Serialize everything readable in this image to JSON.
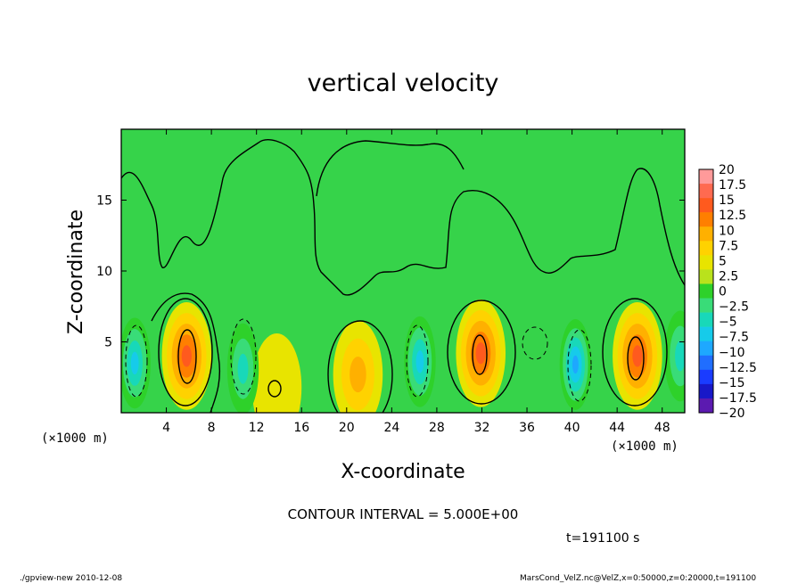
{
  "chart_data": {
    "type": "heatmap",
    "title": "vertical velocity",
    "xlabel": "X-coordinate",
    "ylabel": "Z-coordinate",
    "x_unit": "(×1000 m)",
    "y_unit": "(×1000 m)",
    "xlim": [
      0,
      50
    ],
    "ylim": [
      0,
      20
    ],
    "x_ticks": [
      4,
      8,
      12,
      16,
      20,
      24,
      28,
      32,
      36,
      40,
      44,
      48
    ],
    "y_ticks": [
      5,
      10,
      15
    ],
    "contour_interval_text": "CONTOUR INTERVAL = 5.000E+00",
    "time_text": "t=191100 s",
    "colorbar_levels": [
      "20",
      "17.5",
      "15",
      "12.5",
      "10",
      "7.5",
      "5",
      "2.5",
      "0",
      "-2.5",
      "-5",
      "-7.5",
      "-10",
      "-12.5",
      "-15",
      "-17.5",
      "-20"
    ],
    "colorbar_colors": [
      "#ff9a9a",
      "#ff6a50",
      "#ff5a1e",
      "#ff7f00",
      "#ffb000",
      "#ffd200",
      "#e8e400",
      "#b9e21c",
      "#2ed12a",
      "#39dc78",
      "#18d8b9",
      "#16cbea",
      "#1ea8ff",
      "#206eff",
      "#1a3cff",
      "#1818c8",
      "#5b1ab0"
    ],
    "features": [
      {
        "kind": "updraft",
        "x": 5.8,
        "z": 4.0,
        "max": 12.5
      },
      {
        "kind": "updraft",
        "x": 13.8,
        "z": 1.8,
        "max": 2.5
      },
      {
        "kind": "updraft",
        "x": 21.0,
        "z": 2.7,
        "max": 7.5
      },
      {
        "kind": "updraft",
        "x": 31.9,
        "z": 4.2,
        "max": 12.5
      },
      {
        "kind": "updraft",
        "x": 45.8,
        "z": 4.0,
        "max": 12.5
      },
      {
        "kind": "downdraft",
        "x": 1.2,
        "z": 3.5,
        "min": -10
      },
      {
        "kind": "downdraft",
        "x": 10.8,
        "z": 3.1,
        "min": -7.5
      },
      {
        "kind": "downdraft",
        "x": 26.5,
        "z": 3.6,
        "min": -10
      },
      {
        "kind": "downdraft",
        "x": 40.3,
        "z": 3.4,
        "min": -12.5
      },
      {
        "kind": "downdraft",
        "x": 49.6,
        "z": 4.0,
        "min": -7.5
      }
    ]
  },
  "footer": {
    "left": "./gpview-new  2010-12-08",
    "right": "MarsCond_VelZ.nc@VelZ,x=0:50000,z=0:20000,t=191100"
  }
}
